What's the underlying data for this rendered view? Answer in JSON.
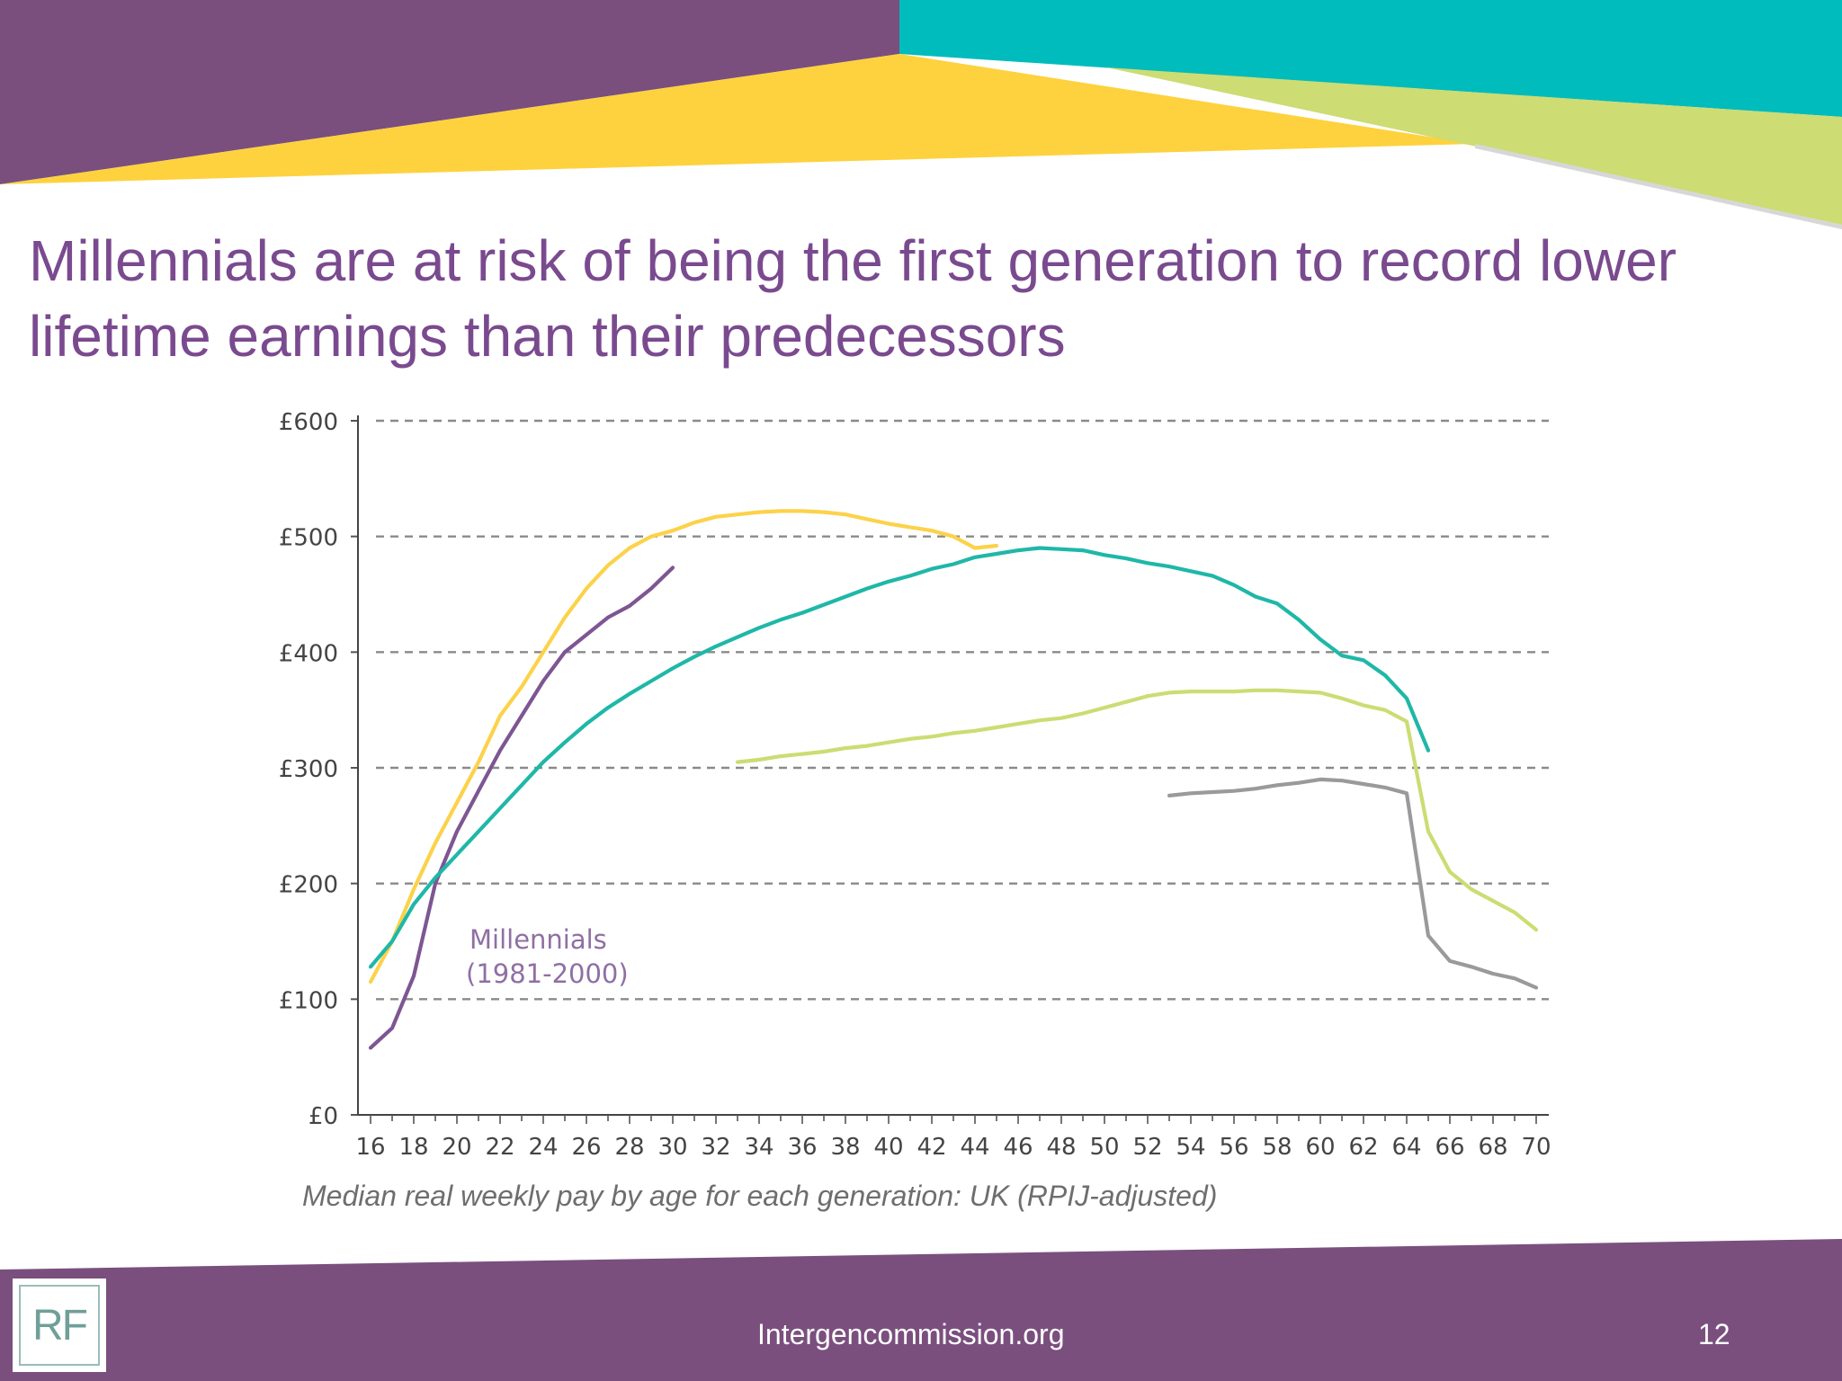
{
  "slide": {
    "title": "Millennials are at risk of being the first generation to record lower lifetime earnings than their predecessors",
    "caption": "Median real weekly pay by age for each generation: UK (RPIJ-adjusted)",
    "footer_url": "Intergencommission.org",
    "page_number": "12",
    "logo_text": "RF",
    "colors": {
      "purple": "#7a4f7e",
      "teal": "#00bcbc",
      "yellow": "#fdd23e",
      "lime": "#cddc73"
    }
  },
  "chart_data": {
    "type": "line",
    "title": "",
    "xlabel": "",
    "ylabel": "",
    "xlim": [
      16,
      70
    ],
    "ylim": [
      0,
      600
    ],
    "x_ticks": [
      16,
      18,
      20,
      22,
      24,
      26,
      28,
      30,
      32,
      34,
      36,
      38,
      40,
      42,
      44,
      46,
      48,
      50,
      52,
      54,
      56,
      58,
      60,
      62,
      64,
      66,
      68,
      70
    ],
    "y_ticks": [
      {
        "value": 0,
        "label": "£0"
      },
      {
        "value": 100,
        "label": "£100"
      },
      {
        "value": 200,
        "label": "£200"
      },
      {
        "value": 300,
        "label": "£300"
      },
      {
        "value": 400,
        "label": "£400"
      },
      {
        "value": 500,
        "label": "£500"
      },
      {
        "value": 600,
        "label": "£600"
      }
    ],
    "grid": "horizontal-dashed",
    "annotations": [
      {
        "line1": "Millennials",
        "line2": "(1981-2000)",
        "x": 20,
        "y": 150,
        "color": "#8f6fa3"
      }
    ],
    "series": [
      {
        "color": "#fcd24a",
        "x": [
          16,
          17,
          18,
          19,
          20,
          21,
          22,
          23,
          24,
          25,
          26,
          27,
          28,
          29,
          30,
          31,
          32,
          33,
          34,
          35,
          36,
          37,
          38,
          39,
          40,
          41,
          42,
          43,
          44,
          45
        ],
        "y": [
          115,
          150,
          195,
          235,
          270,
          305,
          345,
          370,
          400,
          430,
          455,
          475,
          490,
          500,
          505,
          512,
          517,
          519,
          521,
          522,
          522,
          521,
          519,
          515,
          511,
          508,
          505,
          500,
          490,
          492
        ]
      },
      {
        "color": "#7d5692",
        "x": [
          16,
          17,
          18,
          19,
          20,
          21,
          22,
          23,
          24,
          25,
          26,
          27,
          28,
          29,
          30
        ],
        "y": [
          58,
          75,
          120,
          200,
          245,
          280,
          315,
          345,
          375,
          400,
          415,
          430,
          440,
          455,
          473
        ]
      },
      {
        "color": "#1fb7a8",
        "x": [
          16,
          17,
          18,
          19,
          20,
          21,
          22,
          23,
          24,
          25,
          26,
          27,
          28,
          29,
          30,
          31,
          32,
          33,
          34,
          35,
          36,
          37,
          38,
          39,
          40,
          41,
          42,
          43,
          44,
          45,
          46,
          47,
          48,
          49,
          50,
          51,
          52,
          53,
          54,
          55,
          56,
          57,
          58,
          59,
          60,
          61,
          62,
          63,
          64,
          65
        ],
        "y": [
          128,
          150,
          182,
          205,
          225,
          245,
          265,
          285,
          305,
          322,
          338,
          352,
          364,
          375,
          386,
          396,
          405,
          413,
          421,
          428,
          434,
          441,
          448,
          455,
          461,
          466,
          472,
          476,
          482,
          485,
          488,
          490,
          489,
          488,
          484,
          481,
          477,
          474,
          470,
          466,
          458,
          448,
          442,
          428,
          411,
          397,
          393,
          380,
          360,
          315
        ]
      },
      {
        "color": "#cddc73",
        "x": [
          33,
          34,
          35,
          36,
          37,
          38,
          39,
          40,
          41,
          42,
          43,
          44,
          45,
          46,
          47,
          48,
          49,
          50,
          51,
          52,
          53,
          54,
          55,
          56,
          57,
          58,
          59,
          60,
          61,
          62,
          63,
          64,
          65,
          66,
          67,
          68,
          69,
          70
        ],
        "y": [
          305,
          307,
          310,
          312,
          314,
          317,
          319,
          322,
          325,
          327,
          330,
          332,
          335,
          338,
          341,
          343,
          347,
          352,
          357,
          362,
          365,
          366,
          366,
          366,
          367,
          367,
          366,
          365,
          360,
          354,
          350,
          340,
          245,
          210,
          195,
          185,
          175,
          160
        ]
      },
      {
        "color": "#9a9a9a",
        "x": [
          53,
          54,
          55,
          56,
          57,
          58,
          59,
          60,
          61,
          62,
          63,
          64,
          65,
          66,
          67,
          68,
          69,
          70
        ],
        "y": [
          276,
          278,
          279,
          280,
          282,
          285,
          287,
          290,
          289,
          286,
          283,
          278,
          155,
          133,
          128,
          122,
          118,
          110
        ]
      }
    ]
  }
}
